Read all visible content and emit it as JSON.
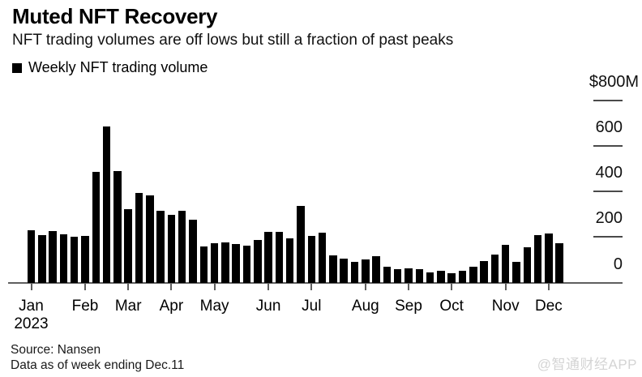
{
  "header": {
    "title": "Muted NFT Recovery",
    "subtitle": "NFT trading volumes are off lows but still a fraction of past peaks"
  },
  "legend": {
    "label": "Weekly NFT trading volume",
    "marker_color": "#000000"
  },
  "chart_data": {
    "type": "bar",
    "title": "Muted NFT Recovery",
    "series": [
      {
        "name": "Weekly NFT trading volume",
        "values": [
          230,
          208,
          227,
          210,
          200,
          205,
          485,
          685,
          490,
          321,
          392,
          384,
          314,
          298,
          316,
          274,
          159,
          172,
          176,
          169,
          163,
          187,
          221,
          222,
          195,
          336,
          205,
          219,
          118,
          104,
          90,
          101,
          117,
          69,
          57,
          61,
          59,
          46,
          53,
          41,
          52,
          70,
          94,
          121,
          166,
          91,
          153,
          209,
          214,
          171
        ]
      }
    ],
    "x_unit": "weekly bars, Jan through week ending Dec.11",
    "x_ticks": [
      {
        "label": "Jan",
        "week_index": 0,
        "year_label": "2023"
      },
      {
        "label": "Feb",
        "week_index": 5
      },
      {
        "label": "Mar",
        "week_index": 9
      },
      {
        "label": "Apr",
        "week_index": 13
      },
      {
        "label": "May",
        "week_index": 17
      },
      {
        "label": "Jun",
        "week_index": 22
      },
      {
        "label": "Jul",
        "week_index": 26
      },
      {
        "label": "Aug",
        "week_index": 31
      },
      {
        "label": "Sep",
        "week_index": 35
      },
      {
        "label": "Oct",
        "week_index": 39
      },
      {
        "label": "Nov",
        "week_index": 44
      },
      {
        "label": "Dec",
        "week_index": 48
      }
    ],
    "y_ticks": [
      {
        "value": 0,
        "label": "0"
      },
      {
        "value": 200,
        "label": "200"
      },
      {
        "value": 400,
        "label": "400"
      },
      {
        "value": 600,
        "label": "600"
      },
      {
        "value": 800,
        "label": "$800M"
      }
    ],
    "ylim": [
      0,
      800
    ],
    "y_unit": "$M",
    "grid": false,
    "legend_position": "top-left",
    "bar_color": "#000000",
    "axis_color": "#5f5f5f",
    "tick_dash_color": "#4a4a4a"
  },
  "footer": {
    "source": "Source: Nansen",
    "note": "Data as of week ending Dec.11"
  },
  "watermark": "@智通财经APP"
}
